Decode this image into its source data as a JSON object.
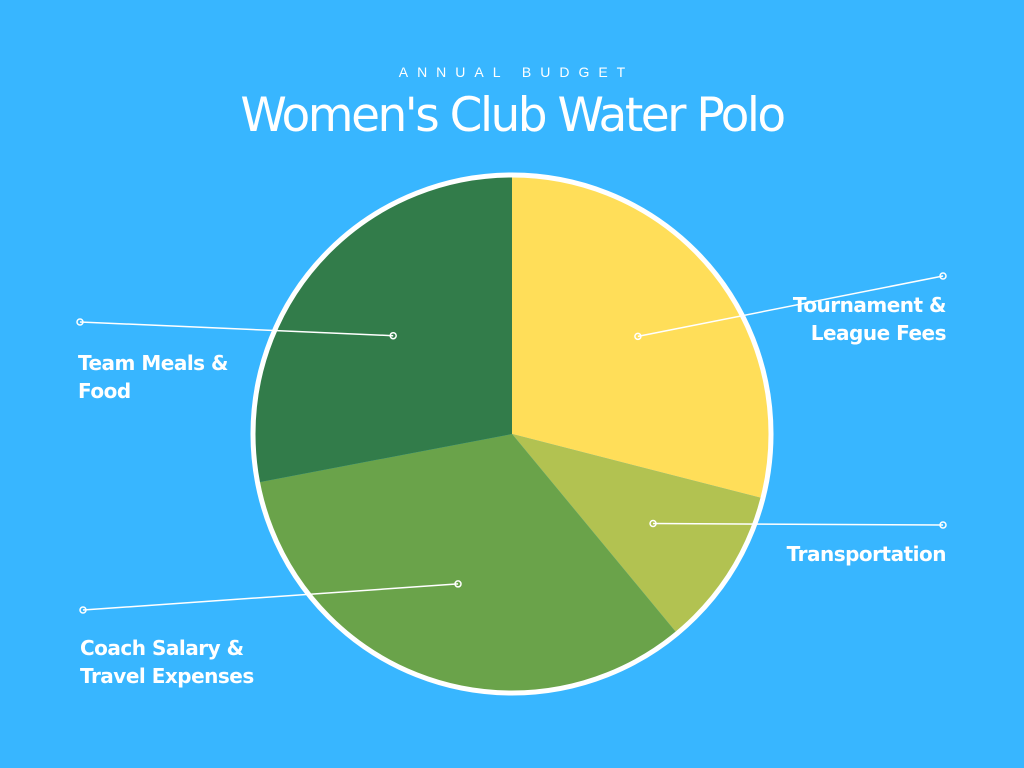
{
  "chart_data": {
    "type": "pie",
    "supertitle": "ANNUAL BUDGET",
    "title": "Women's Club Water Polo",
    "start_angle_deg": 0,
    "direction": "clockwise",
    "slices": [
      {
        "label_lines": [
          "Tournament &",
          "League Fees"
        ],
        "value": 29,
        "color": "#ffde59"
      },
      {
        "label_lines": [
          "Transportation"
        ],
        "value": 10,
        "color": "#b2c251"
      },
      {
        "label_lines": [
          "Coach Salary &",
          "Travel Expenses"
        ],
        "value": 33,
        "color": "#6aa34a"
      },
      {
        "label_lines": [
          "Team Meals &",
          "Food"
        ],
        "value": 28,
        "color": "#327c4a"
      }
    ],
    "legend": "none",
    "grid": false
  },
  "colors": {
    "background": "#38b6ff",
    "outline": "#ffffff",
    "text": "#ffffff"
  }
}
